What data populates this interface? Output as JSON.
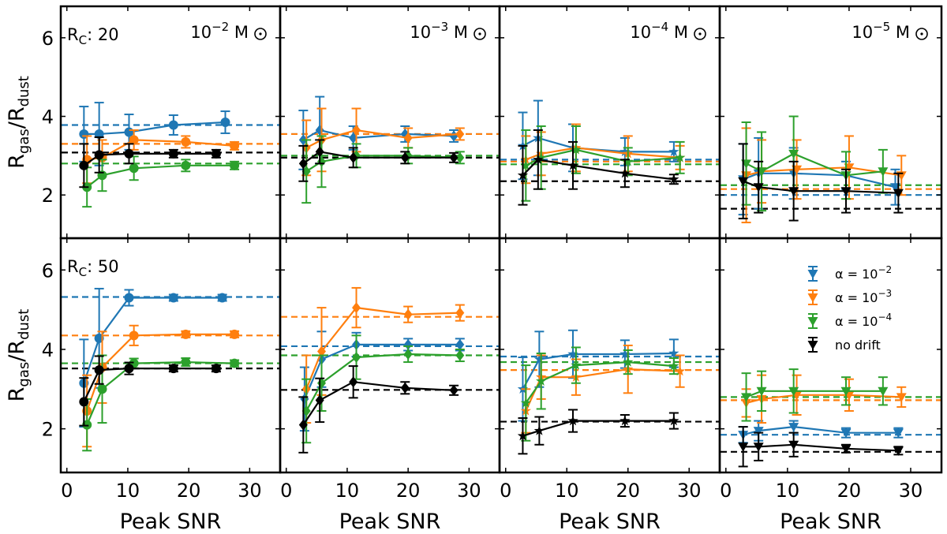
{
  "chart_data": {
    "type": "line",
    "ylabel_main": "R",
    "ylabel_sub1": "gas",
    "ylabel_sep": "/R",
    "ylabel_sub2": "dust",
    "xlabel": "Peak SNR",
    "xlim": [
      -1,
      35
    ],
    "ylim": [
      0.9,
      6.8
    ],
    "xticks": [
      0,
      10,
      20,
      30
    ],
    "yticks": [
      2,
      4,
      6
    ],
    "colors": {
      "a2": "#1f77b4",
      "a3": "#ff7f0e",
      "a4": "#2ca02c",
      "nd": "#000000"
    },
    "rows": [
      {
        "rc_prefix": "R",
        "rc_sub": "C",
        "rc_value": ": 20"
      },
      {
        "rc_prefix": "R",
        "rc_sub": "C",
        "rc_value": ": 50"
      }
    ],
    "columns": [
      {
        "mass_base": "10",
        "mass_exp": "−2",
        "mass_unit": " M",
        "marker": "circle"
      },
      {
        "mass_base": "10",
        "mass_exp": "−3",
        "mass_unit": " M",
        "marker": "diamond"
      },
      {
        "mass_base": "10",
        "mass_exp": "−4",
        "mass_unit": " M",
        "marker": "star"
      },
      {
        "mass_base": "10",
        "mass_exp": "−5",
        "mass_unit": " M",
        "marker": "triangle"
      }
    ],
    "legend": [
      {
        "key": "a2",
        "label": "α = 10",
        "exp": "−2"
      },
      {
        "key": "a3",
        "label": "α = 10",
        "exp": "−3"
      },
      {
        "key": "a4",
        "label": "α = 10",
        "exp": "−4"
      },
      {
        "key": "nd",
        "label": "no drift",
        "exp": ""
      }
    ],
    "panels": [
      {
        "row": 0,
        "col": 0,
        "series": [
          {
            "key": "a2",
            "ref": 3.78,
            "x": [
              2.8,
              5.3,
              10.2,
              17.5,
              26
            ],
            "y": [
              3.55,
              3.55,
              3.6,
              3.78,
              3.85
            ],
            "err": [
              0.7,
              0.8,
              0.45,
              0.25,
              0.28
            ]
          },
          {
            "key": "a3",
            "ref": 3.3,
            "x": [
              3.3,
              5.8,
              11,
              19.5,
              27.5
            ],
            "y": [
              2.9,
              2.95,
              3.4,
              3.35,
              3.25
            ],
            "err": [
              0.6,
              0.45,
              0.25,
              0.15,
              0.1
            ]
          },
          {
            "key": "a4",
            "ref": 2.8,
            "x": [
              3.3,
              5.8,
              11,
              19.5,
              27.5
            ],
            "y": [
              2.2,
              2.5,
              2.68,
              2.75,
              2.75
            ],
            "err": [
              0.5,
              0.4,
              0.3,
              0.15,
              0.1
            ]
          },
          {
            "key": "nd",
            "ref": 3.08,
            "x": [
              2.8,
              5.3,
              10.2,
              17.5,
              24.5
            ],
            "y": [
              2.75,
              3.02,
              3.05,
              3.05,
              3.05
            ],
            "err": [
              0.55,
              0.45,
              0.25,
              0.1,
              0.1
            ]
          }
        ]
      },
      {
        "row": 0,
        "col": 1,
        "series": [
          {
            "key": "a2",
            "ref": 3.55,
            "x": [
              2.8,
              5.5,
              11,
              19.5,
              27.5
            ],
            "y": [
              3.4,
              3.65,
              3.45,
              3.55,
              3.5
            ],
            "err": [
              0.75,
              0.85,
              0.3,
              0.2,
              0.15
            ]
          },
          {
            "key": "a3",
            "ref": 3.55,
            "x": [
              3.3,
              5.8,
              11.5,
              20,
              28.5
            ],
            "y": [
              3.2,
              3.4,
              3.65,
              3.45,
              3.55
            ],
            "err": [
              0.7,
              0.8,
              0.55,
              0.25,
              0.15
            ]
          },
          {
            "key": "a4",
            "ref": 3.0,
            "x": [
              3.3,
              5.8,
              11.5,
              20,
              28.5
            ],
            "y": [
              2.6,
              2.85,
              3.0,
              3.0,
              2.95
            ],
            "err": [
              0.8,
              0.65,
              0.3,
              0.2,
              0.15
            ]
          },
          {
            "key": "nd",
            "ref": 2.95,
            "x": [
              2.8,
              5.5,
              11,
              19.5,
              27.5
            ],
            "y": [
              2.8,
              3.1,
              2.95,
              2.95,
              2.95
            ],
            "err": [
              0.45,
              0.3,
              0.25,
              0.15,
              0.12
            ]
          }
        ]
      },
      {
        "row": 0,
        "col": 2,
        "series": [
          {
            "key": "a2",
            "ref": 2.9,
            "x": [
              2.8,
              5.3,
              11,
              19.5,
              27.5
            ],
            "y": [
              3.25,
              3.45,
              3.2,
              3.1,
              3.1
            ],
            "err": [
              0.85,
              0.95,
              0.6,
              0.35,
              0.25
            ]
          },
          {
            "key": "a3",
            "ref": 2.85,
            "x": [
              3.3,
              5.8,
              11.5,
              20,
              28.5
            ],
            "y": [
              2.9,
              3.05,
              3.2,
              3.05,
              2.95
            ],
            "err": [
              0.6,
              0.55,
              0.6,
              0.45,
              0.3
            ]
          },
          {
            "key": "a4",
            "ref": 2.78,
            "x": [
              3.3,
              5.8,
              11.5,
              20,
              28.5
            ],
            "y": [
              2.75,
              2.95,
              3.15,
              2.85,
              2.95
            ],
            "err": [
              0.9,
              0.8,
              0.6,
              0.35,
              0.4
            ]
          },
          {
            "key": "nd",
            "ref": 2.35,
            "x": [
              2.8,
              5.3,
              11,
              19.5,
              27.5
            ],
            "y": [
              2.5,
              2.9,
              2.75,
              2.55,
              2.4
            ],
            "err": [
              0.75,
              0.75,
              0.6,
              0.35,
              0.12
            ]
          }
        ]
      },
      {
        "row": 0,
        "col": 3,
        "series": [
          {
            "key": "a2",
            "ref": 2.0,
            "x": [
              2.8,
              5.3,
              11,
              19.5,
              27.5
            ],
            "y": [
              2.4,
              2.55,
              2.55,
              2.5,
              2.2
            ],
            "err": [
              0.9,
              0.9,
              0.65,
              0.35,
              0.45
            ]
          },
          {
            "key": "a3",
            "ref": 2.15,
            "x": [
              3.3,
              5.8,
              11.5,
              20,
              28.5
            ],
            "y": [
              2.5,
              2.6,
              2.65,
              2.7,
              2.5
            ],
            "err": [
              1.2,
              0.8,
              0.75,
              0.8,
              0.5
            ]
          },
          {
            "key": "a4",
            "ref": 2.25,
            "x": [
              3.3,
              5.8,
              11,
              19.5,
              25.5
            ],
            "y": [
              2.8,
              2.6,
              3.05,
              2.5,
              2.6
            ],
            "err": [
              1.05,
              1.0,
              0.95,
              0.6,
              0.55
            ]
          },
          {
            "key": "nd",
            "ref": 1.65,
            "x": [
              2.8,
              5.3,
              11,
              19.5,
              28
            ],
            "y": [
              2.35,
              2.2,
              2.1,
              2.1,
              2.05
            ],
            "err": [
              0.95,
              0.65,
              0.75,
              0.55,
              0.5
            ]
          }
        ]
      },
      {
        "row": 1,
        "col": 0,
        "series": [
          {
            "key": "a2",
            "ref": 5.32,
            "x": [
              2.8,
              5.3,
              10.2,
              17.5,
              25.5
            ],
            "y": [
              3.15,
              4.28,
              5.3,
              5.3,
              5.3
            ],
            "err": [
              1.1,
              1.25,
              0.2,
              0.08,
              0.08
            ]
          },
          {
            "key": "a3",
            "ref": 4.35,
            "x": [
              3.3,
              5.8,
              11,
              19.5,
              27.5
            ],
            "y": [
              2.45,
              3.55,
              4.35,
              4.38,
              4.38
            ],
            "err": [
              0.9,
              0.9,
              0.25,
              0.08,
              0.08
            ]
          },
          {
            "key": "a4",
            "ref": 3.65,
            "x": [
              3.3,
              5.8,
              11,
              19.5,
              27.5
            ],
            "y": [
              2.1,
              3.0,
              3.65,
              3.68,
              3.65
            ],
            "err": [
              0.65,
              0.85,
              0.12,
              0.1,
              0.08
            ]
          },
          {
            "key": "nd",
            "ref": 3.52,
            "x": [
              2.8,
              5.3,
              10.2,
              17.5,
              24.5
            ],
            "y": [
              2.68,
              3.48,
              3.52,
              3.52,
              3.52
            ],
            "err": [
              0.6,
              0.35,
              0.15,
              0.08,
              0.08
            ]
          }
        ]
      },
      {
        "row": 1,
        "col": 1,
        "series": [
          {
            "key": "a2",
            "ref": 4.08,
            "x": [
              3.0,
              5.8,
              11.5,
              20,
              28.5
            ],
            "y": [
              2.75,
              3.75,
              4.12,
              4.12,
              4.12
            ],
            "err": [
              0.8,
              0.7,
              0.3,
              0.15,
              0.15
            ]
          },
          {
            "key": "a3",
            "ref": 4.82,
            "x": [
              3.3,
              5.8,
              11.5,
              20,
              28.5
            ],
            "y": [
              3.0,
              3.95,
              5.05,
              4.88,
              4.92
            ],
            "err": [
              0.85,
              1.1,
              0.5,
              0.2,
              0.2
            ]
          },
          {
            "key": "a4",
            "ref": 3.85,
            "x": [
              3.3,
              5.8,
              11.5,
              20,
              28.5
            ],
            "y": [
              2.45,
              3.15,
              3.8,
              3.88,
              3.85
            ],
            "err": [
              0.8,
              0.7,
              0.55,
              0.2,
              0.15
            ]
          },
          {
            "key": "nd",
            "ref": 2.98,
            "x": [
              2.8,
              5.5,
              11,
              19.5,
              27.5
            ],
            "y": [
              2.1,
              2.72,
              3.18,
              3.03,
              2.97
            ],
            "err": [
              0.7,
              0.55,
              0.4,
              0.15,
              0.12
            ]
          }
        ]
      },
      {
        "row": 1,
        "col": 2,
        "series": [
          {
            "key": "a2",
            "ref": 3.82,
            "x": [
              2.8,
              5.5,
              11,
              19.5,
              27.5
            ],
            "y": [
              3.0,
              3.75,
              3.88,
              3.88,
              3.9
            ],
            "err": [
              0.8,
              0.7,
              0.6,
              0.35,
              0.35
            ]
          },
          {
            "key": "a3",
            "ref": 3.48,
            "x": [
              3.3,
              5.8,
              11.5,
              20,
              28.5
            ],
            "y": [
              2.45,
              3.3,
              3.3,
              3.5,
              3.45
            ],
            "err": [
              0.55,
              0.55,
              0.45,
              0.6,
              0.4
            ]
          },
          {
            "key": "a4",
            "ref": 3.68,
            "x": [
              3.3,
              5.8,
              11.5,
              20,
              27.5
            ],
            "y": [
              2.65,
              3.2,
              3.6,
              3.68,
              3.58
            ],
            "err": [
              0.95,
              0.7,
              0.45,
              0.3,
              0.2
            ]
          },
          {
            "key": "nd",
            "ref": 2.18,
            "x": [
              2.8,
              5.5,
              11,
              19.5,
              27.5
            ],
            "y": [
              1.82,
              1.95,
              2.2,
              2.2,
              2.2
            ],
            "err": [
              0.45,
              0.35,
              0.28,
              0.15,
              0.2
            ]
          }
        ]
      },
      {
        "row": 1,
        "col": 3,
        "series": [
          {
            "key": "a2",
            "ref": 1.85,
            "x": [
              2.8,
              5.3,
              11,
              19.5,
              28
            ],
            "y": [
              1.85,
              1.95,
              2.05,
              1.9,
              1.9
            ],
            "err": [
              0.2,
              0.25,
              0.15,
              0.12,
              0.12
            ]
          },
          {
            "key": "a3",
            "ref": 2.72,
            "x": [
              3.3,
              5.8,
              11.5,
              20,
              28.5
            ],
            "y": [
              2.65,
              2.75,
              2.85,
              2.85,
              2.8
            ],
            "err": [
              0.35,
              0.6,
              0.5,
              0.4,
              0.25
            ]
          },
          {
            "key": "a4",
            "ref": 2.8,
            "x": [
              3.3,
              5.8,
              11,
              19.5,
              25.5
            ],
            "y": [
              2.8,
              2.95,
              2.95,
              2.95,
              2.95
            ],
            "err": [
              0.6,
              0.5,
              0.55,
              0.35,
              0.35
            ]
          },
          {
            "key": "nd",
            "ref": 1.42,
            "x": [
              2.8,
              5.3,
              11,
              19.5,
              28
            ],
            "y": [
              1.55,
              1.55,
              1.6,
              1.5,
              1.45
            ],
            "err": [
              0.5,
              0.35,
              0.3,
              0.1,
              0.1
            ]
          }
        ]
      }
    ]
  }
}
